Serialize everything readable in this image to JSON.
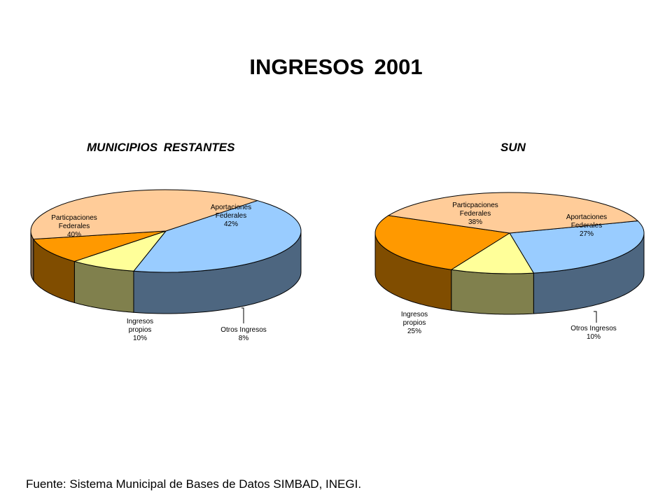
{
  "title": "INGRESOS 2001",
  "source": "Fuente: Sistema Municipal de Bases de Datos SIMBAD, INEGI.",
  "chart_data": [
    {
      "type": "pie",
      "title": "MUNICIPIOS RESTANTES",
      "style": "3d",
      "categories": [
        "Aportaciones Federales",
        "Otros Ingresos",
        "Ingresos propios",
        "Particpaciones Federales"
      ],
      "values": [
        42,
        8,
        10,
        40
      ],
      "units": "%",
      "labels": [
        {
          "lines": [
            "Aportaciones",
            "Federales",
            "42%"
          ]
        },
        {
          "lines": [
            "Otros Ingresos",
            "8%"
          ]
        },
        {
          "lines": [
            "Ingresos",
            "propios",
            "10%"
          ]
        },
        {
          "lines": [
            "Particpaciones",
            "Federales",
            "40%"
          ]
        }
      ],
      "colors": [
        "#99CCFF",
        "#FFFF99",
        "#FF9900",
        "#FFCC99"
      ]
    },
    {
      "type": "pie",
      "title": "SUN",
      "style": "3d",
      "categories": [
        "Aportaciones Federales",
        "Otros Ingresos",
        "Ingresos propios",
        "Particpaciones Federales"
      ],
      "values": [
        27,
        10,
        25,
        38
      ],
      "units": "%",
      "labels": [
        {
          "lines": [
            "Aportaciones",
            "Federales",
            "27%"
          ]
        },
        {
          "lines": [
            "Otros Ingresos",
            "10%"
          ]
        },
        {
          "lines": [
            "Ingresos",
            "propios",
            "25%"
          ]
        },
        {
          "lines": [
            "Particpaciones",
            "Federales",
            "38%"
          ]
        }
      ],
      "colors": [
        "#99CCFF",
        "#FFFF99",
        "#FF9900",
        "#FFCC99"
      ]
    }
  ]
}
